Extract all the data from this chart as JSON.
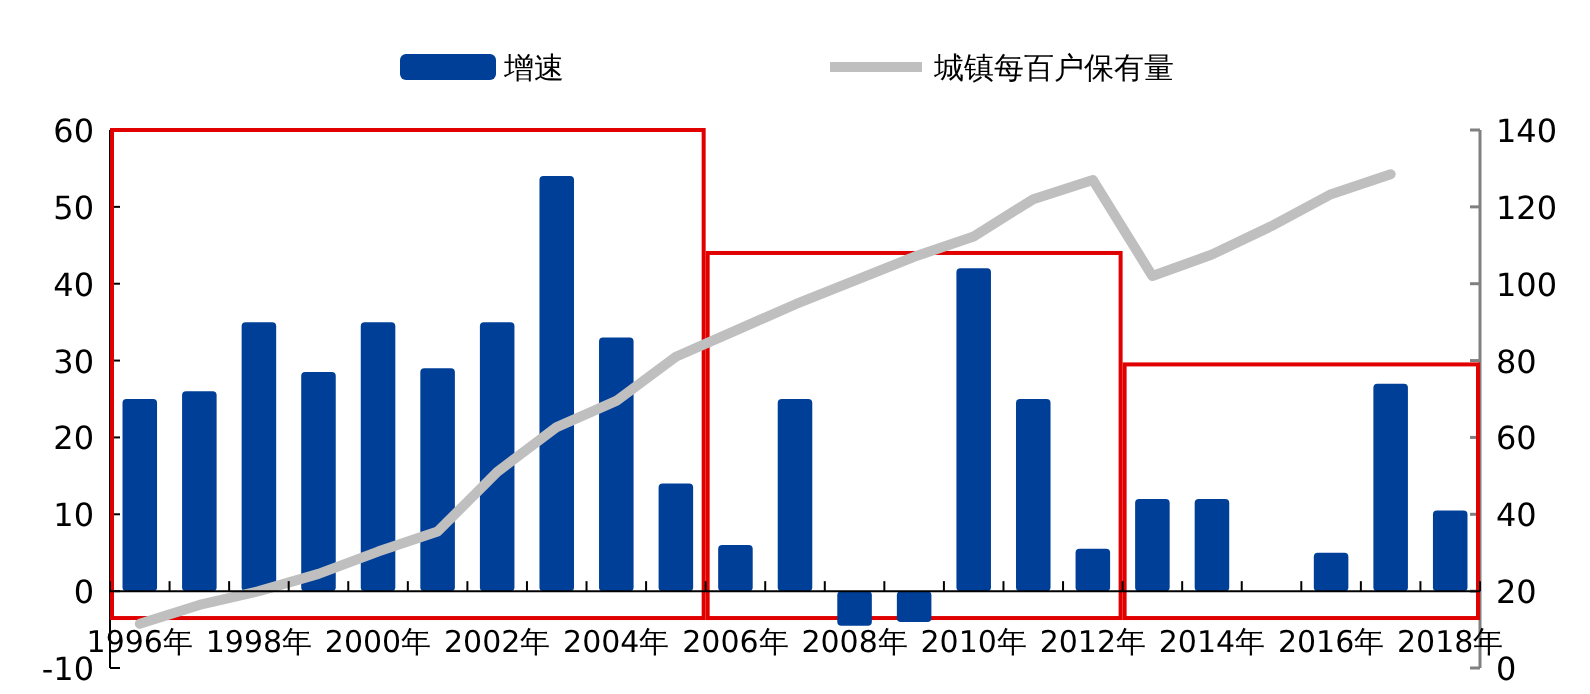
{
  "chart_data": {
    "type": "bar",
    "categories": [
      "1996年",
      null,
      "1998年",
      null,
      "2000年",
      null,
      "2002年",
      null,
      "2004年",
      null,
      "2006年",
      null,
      "2008年",
      null,
      "2010年",
      null,
      "2012年",
      null,
      "2014年",
      null,
      "2016年",
      null,
      "2018年"
    ],
    "series": [
      {
        "name": "增速",
        "color": "#003f98",
        "values": [
          25,
          26,
          35,
          28.5,
          35,
          29,
          35,
          54,
          33,
          14,
          6,
          25,
          -4.5,
          -4,
          42,
          25,
          5.5,
          12,
          12,
          null,
          5,
          27,
          10.5
        ]
      },
      {
        "name": "城镇每百户保有量",
        "type": "line",
        "axis": "y2",
        "color": "#bfbfbf",
        "values": [
          11.5,
          16.4,
          20,
          24.5,
          30.3,
          35.5,
          51,
          62.7,
          69.5,
          81,
          87.8,
          94.6,
          100.8,
          107,
          112.3,
          122,
          127,
          102,
          107.6,
          115,
          123.3,
          128.5,
          null
        ]
      }
    ],
    "ylim": [
      -10,
      60
    ],
    "yticks": [
      -10,
      0,
      10,
      20,
      30,
      40,
      50,
      60
    ],
    "y2lim": [
      0,
      140
    ],
    "y2ticks": [
      0,
      20,
      40,
      60,
      80,
      100,
      120,
      140
    ],
    "legend": "top",
    "grid": false
  }
}
